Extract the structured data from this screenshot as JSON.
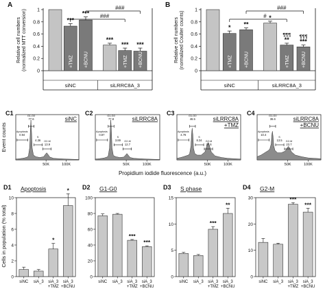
{
  "chart_data": [
    {
      "id": "A",
      "type": "bar",
      "panel_label": "A",
      "ylabel_1": "Relative cell numbers",
      "ylabel_2": "(normalized MTT conversion)",
      "ylim": [
        0,
        1
      ],
      "yticks": [
        "0",
        "0.2",
        "0.4",
        "0.6",
        "0.8",
        "1"
      ],
      "groups": [
        {
          "label": "siNC",
          "bar_labels": [
            "",
            "+TMZ",
            "+BCNU"
          ]
        },
        {
          "label": "siLRRC8A_3",
          "bar_labels": [
            "",
            "+TMZ",
            "+BCNU"
          ]
        }
      ],
      "bars": [
        {
          "value": 1.0,
          "error": 0.0,
          "sig": "",
          "color": "#c4c4c4"
        },
        {
          "value": 0.73,
          "error": 0.04,
          "sig": "***",
          "color": "#7a7a7a"
        },
        {
          "value": 0.83,
          "error": 0.05,
          "sig": "***",
          "color": "#7a7a7a"
        },
        {
          "value": 0.42,
          "error": 0.03,
          "sig": "***",
          "color": "#c4c4c4"
        },
        {
          "value": 0.33,
          "error": 0.04,
          "sig": "***",
          "color": "#7a7a7a"
        },
        {
          "value": 0.32,
          "error": 0.05,
          "sig": "***",
          "color": "#7a7a7a"
        }
      ],
      "brackets": [
        {
          "label": "###",
          "from": 1,
          "to": 4
        },
        {
          "label": "###",
          "from": 2,
          "to": 5
        }
      ]
    },
    {
      "id": "B",
      "type": "bar",
      "panel_label": "B",
      "ylabel_1": "Relative cell numbers",
      "ylabel_2": "(normalized Coulter counts)",
      "ylim": [
        0,
        1
      ],
      "yticks": [
        "0",
        "0.2",
        "0.4",
        "0.6",
        "0.8",
        "1"
      ],
      "groups": [
        {
          "label": "siNC",
          "bar_labels": [
            "",
            "+TMZ",
            "+BCNU"
          ]
        },
        {
          "label": "siLRRC8A_3",
          "bar_labels": [
            "",
            "+TMZ",
            "+BCNU"
          ]
        }
      ],
      "bars": [
        {
          "value": 1.0,
          "error": 0.0,
          "sig": "",
          "sig2": "",
          "color": "#c4c4c4"
        },
        {
          "value": 0.61,
          "error": 0.04,
          "sig": "*",
          "sig2": "",
          "color": "#7a7a7a"
        },
        {
          "value": 0.67,
          "error": 0.03,
          "sig": "**",
          "sig2": "",
          "color": "#7a7a7a"
        },
        {
          "value": 0.78,
          "error": 0.03,
          "sig": "*",
          "sig2": "",
          "color": "#c4c4c4"
        },
        {
          "value": 0.42,
          "error": 0.03,
          "sig": "**",
          "sig2": "¶¶¶",
          "color": "#7a7a7a"
        },
        {
          "value": 0.39,
          "error": 0.03,
          "sig": "***",
          "sig2": "¶¶¶",
          "color": "#7a7a7a"
        }
      ],
      "brackets": [
        {
          "label": "#",
          "from": 1,
          "to": 4
        },
        {
          "label": "###",
          "from": 2,
          "to": 5
        }
      ]
    },
    {
      "id": "C1",
      "type": "area",
      "panel_label": "C1",
      "sample": "siNC",
      "sample2": "",
      "peaks": [
        {
          "label": "G1-G0",
          "value": "77.6"
        },
        {
          "label": "Apoptosis",
          "value": "0.94"
        },
        {
          "label": "S",
          "value": "4.36"
        },
        {
          "label": "G2-M",
          "value": "13.9"
        }
      ],
      "profile": [
        [
          0,
          2
        ],
        [
          6,
          3
        ],
        [
          10,
          4
        ],
        [
          14,
          5
        ],
        [
          18,
          7
        ],
        [
          20,
          10
        ],
        [
          22,
          30
        ],
        [
          23,
          70
        ],
        [
          24,
          100
        ],
        [
          25,
          70
        ],
        [
          26,
          30
        ],
        [
          28,
          12
        ],
        [
          32,
          8
        ],
        [
          38,
          6
        ],
        [
          44,
          8
        ],
        [
          47,
          14
        ],
        [
          49,
          18
        ],
        [
          51,
          14
        ],
        [
          54,
          7
        ],
        [
          60,
          4
        ],
        [
          70,
          3
        ],
        [
          80,
          2
        ],
        [
          100,
          1
        ]
      ]
    },
    {
      "id": "C2",
      "type": "area",
      "panel_label": "C2",
      "sample": "siLRRC8A",
      "sample2": "",
      "peaks": [
        {
          "label": "G1-G0",
          "value": "77.8"
        },
        {
          "label": "Apoptosis",
          "value": "0.87"
        },
        {
          "label": "S",
          "value": "3.89"
        },
        {
          "label": "G2-M",
          "value": "12.7"
        }
      ],
      "profile": [
        [
          0,
          2
        ],
        [
          6,
          3
        ],
        [
          10,
          4
        ],
        [
          14,
          5
        ],
        [
          18,
          7
        ],
        [
          20,
          10
        ],
        [
          22,
          30
        ],
        [
          23,
          72
        ],
        [
          24,
          100
        ],
        [
          25,
          72
        ],
        [
          26,
          30
        ],
        [
          28,
          11
        ],
        [
          32,
          8
        ],
        [
          38,
          6
        ],
        [
          44,
          7
        ],
        [
          47,
          12
        ],
        [
          49,
          16
        ],
        [
          51,
          12
        ],
        [
          54,
          6
        ],
        [
          60,
          4
        ],
        [
          70,
          3
        ],
        [
          80,
          2
        ],
        [
          100,
          1
        ]
      ]
    },
    {
      "id": "C3",
      "type": "area",
      "panel_label": "C3",
      "sample": "siLRRC8A",
      "sample2": "+TMZ",
      "peaks": [
        {
          "label": "G1-G0",
          "value": "46.5"
        },
        {
          "label": "Apoptosis",
          "value": "4.78"
        },
        {
          "label": "S",
          "value": "8.34"
        },
        {
          "label": "G2-M",
          "value": "27.6"
        }
      ],
      "profile": [
        [
          0,
          4
        ],
        [
          6,
          6
        ],
        [
          10,
          8
        ],
        [
          14,
          10
        ],
        [
          18,
          12
        ],
        [
          20,
          16
        ],
        [
          22,
          35
        ],
        [
          23,
          65
        ],
        [
          24,
          80
        ],
        [
          25,
          62
        ],
        [
          26,
          30
        ],
        [
          28,
          16
        ],
        [
          32,
          12
        ],
        [
          38,
          12
        ],
        [
          44,
          20
        ],
        [
          47,
          36
        ],
        [
          49,
          44
        ],
        [
          51,
          36
        ],
        [
          54,
          20
        ],
        [
          60,
          10
        ],
        [
          70,
          6
        ],
        [
          80,
          4
        ],
        [
          100,
          2
        ]
      ]
    },
    {
      "id": "C4",
      "type": "area",
      "panel_label": "C4",
      "sample": "siLRRC8A",
      "sample2": "+BCNU",
      "peaks": [
        {
          "label": "G1-G0",
          "value": "36.6"
        },
        {
          "label": "Apoptosis",
          "value": "10.4"
        },
        {
          "label": "S",
          "value": "13.5"
        },
        {
          "label": "G2-M",
          "value": "23.7"
        }
      ],
      "profile": [
        [
          0,
          8
        ],
        [
          6,
          12
        ],
        [
          10,
          16
        ],
        [
          14,
          20
        ],
        [
          18,
          24
        ],
        [
          20,
          28
        ],
        [
          22,
          40
        ],
        [
          23,
          62
        ],
        [
          24,
          72
        ],
        [
          25,
          58
        ],
        [
          26,
          36
        ],
        [
          28,
          24
        ],
        [
          32,
          18
        ],
        [
          38,
          18
        ],
        [
          44,
          22
        ],
        [
          47,
          30
        ],
        [
          49,
          34
        ],
        [
          51,
          30
        ],
        [
          54,
          20
        ],
        [
          60,
          12
        ],
        [
          70,
          8
        ],
        [
          80,
          5
        ],
        [
          100,
          3
        ]
      ]
    },
    {
      "id": "D1",
      "type": "bar",
      "panel_label": "D1",
      "subtitle": "Apoptosis",
      "ylim": [
        0,
        10
      ],
      "yticks": [
        "0",
        "2",
        "4",
        "6",
        "8",
        "10"
      ],
      "bars": [
        {
          "label": "siNC",
          "label2": "",
          "value": 0.9,
          "error": 0.3,
          "sig": ""
        },
        {
          "label": "siA_3",
          "label2": "",
          "value": 0.7,
          "error": 0.2,
          "sig": ""
        },
        {
          "label": "siA_3",
          "label2": "+TMZ",
          "value": 3.5,
          "error": 0.7,
          "sig": "*"
        },
        {
          "label": "siA_3",
          "label2": "+BCNU",
          "value": 9.0,
          "error": 1.5,
          "sig": "*"
        }
      ]
    },
    {
      "id": "D2",
      "type": "bar",
      "panel_label": "D2",
      "subtitle": "G1-G0",
      "ylim": [
        0,
        100
      ],
      "yticks": [
        "0",
        "20",
        "40",
        "60",
        "80",
        "100"
      ],
      "bars": [
        {
          "label": "siNC",
          "label2": "",
          "value": 77,
          "error": 2.5,
          "sig": ""
        },
        {
          "label": "siA_3",
          "label2": "",
          "value": 79,
          "error": 1,
          "sig": ""
        },
        {
          "label": "siA_3",
          "label2": "+TMZ",
          "value": 46,
          "error": 1,
          "sig": "***"
        },
        {
          "label": "siA_3",
          "label2": "+BCNU",
          "value": 38,
          "error": 1,
          "sig": "***"
        }
      ]
    },
    {
      "id": "D3",
      "type": "bar",
      "panel_label": "D3",
      "subtitle": "S phase",
      "ylim": [
        0,
        15
      ],
      "yticks": [
        "0",
        "5",
        "10",
        "15"
      ],
      "bars": [
        {
          "label": "siNC",
          "label2": "",
          "value": 4.4,
          "error": 0.2,
          "sig": ""
        },
        {
          "label": "siA_3",
          "label2": "",
          "value": 4.0,
          "error": 0.2,
          "sig": ""
        },
        {
          "label": "siA_3",
          "label2": "+TMZ",
          "value": 9.0,
          "error": 0.5,
          "sig": "***"
        },
        {
          "label": "siA_3",
          "label2": "+BCNU",
          "value": 12.0,
          "error": 1.0,
          "sig": "**"
        }
      ]
    },
    {
      "id": "D4",
      "type": "bar",
      "panel_label": "D4",
      "subtitle": "G2-M",
      "ylim": [
        0,
        30
      ],
      "yticks": [
        "0",
        "10",
        "20",
        "30"
      ],
      "bars": [
        {
          "label": "siNC",
          "label2": "",
          "value": 13,
          "error": 1.5,
          "sig": ""
        },
        {
          "label": "siA_3",
          "label2": "",
          "value": 12.3,
          "error": 0.4,
          "sig": ""
        },
        {
          "label": "siA_3",
          "label2": "+TMZ",
          "value": 27.5,
          "error": 0.6,
          "sig": "***"
        },
        {
          "label": "siA_3",
          "label2": "+BCNU",
          "value": 24.5,
          "error": 1.5,
          "sig": "***"
        }
      ]
    }
  ],
  "c_row": {
    "ylabel": "Event counts",
    "xlabel": "Propidium iodide fluorescence (a.u.)",
    "xticks": [
      "50K",
      "100K"
    ]
  },
  "d_row": {
    "ylabel": "Cells in population (% total)"
  },
  "colors": {
    "bar_light": "#c4c4c4",
    "bar_dark": "#7a7a7a",
    "bar_d": "#c8c8c8",
    "histogram": "#8c8c8c",
    "panel_label": "#000000"
  }
}
